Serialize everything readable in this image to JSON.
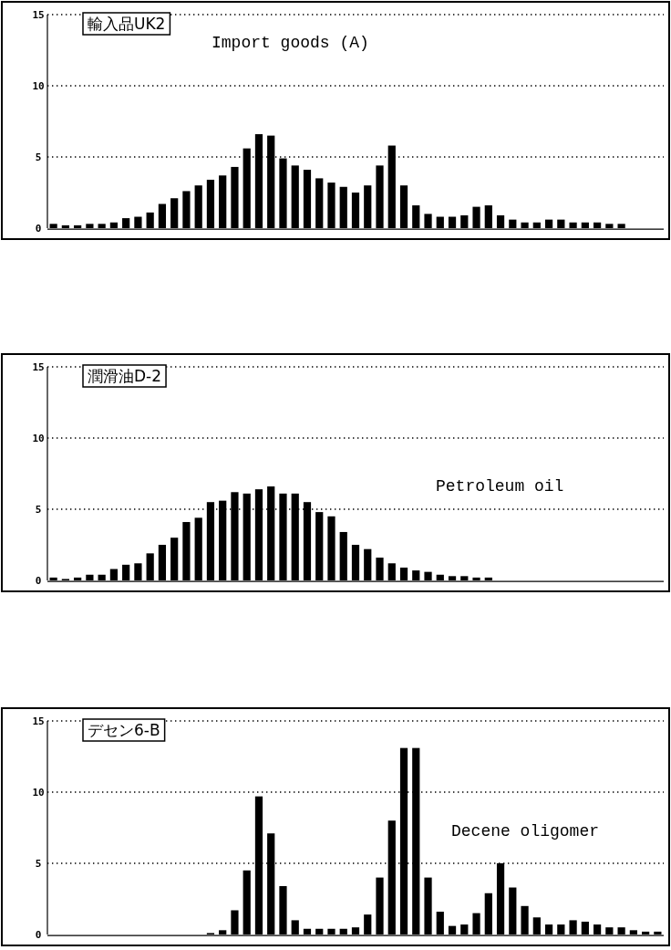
{
  "chart_data": [
    {
      "type": "bar",
      "title": "輸入品UK2",
      "annotations": [
        "Import goods (A)"
      ],
      "categories": [
        null,
        null,
        null,
        null,
        null,
        null,
        null,
        null,
        null,
        null,
        null,
        null,
        null,
        null,
        null,
        null,
        null,
        null,
        null,
        null,
        null,
        null,
        null,
        null,
        null,
        null,
        null,
        null,
        null,
        null,
        null,
        null,
        null,
        null,
        null,
        null,
        null,
        null,
        null,
        null,
        null,
        null,
        null,
        null,
        null,
        null,
        null,
        null,
        null,
        null,
        null
      ],
      "values": [
        0.3,
        0.2,
        0.2,
        0.3,
        0.3,
        0.4,
        0.7,
        0.8,
        1.1,
        1.7,
        2.1,
        2.6,
        3.0,
        3.4,
        3.7,
        4.3,
        5.6,
        6.6,
        6.5,
        4.9,
        4.4,
        4.1,
        3.5,
        3.2,
        2.9,
        2.5,
        3.0,
        4.4,
        5.8,
        3.0,
        1.6,
        1.0,
        0.8,
        0.8,
        0.9,
        1.5,
        1.6,
        0.9,
        0.6,
        0.4,
        0.4,
        0.6,
        0.6,
        0.4,
        0.4,
        0.4,
        0.3,
        0.3,
        null,
        null,
        null
      ],
      "color": "#000000",
      "ylim": [
        0,
        15
      ],
      "yticks": [
        0,
        5,
        10,
        15
      ],
      "grid": "y"
    },
    {
      "type": "bar",
      "title": "潤滑油D-2",
      "annotations": [
        "Petroleum oil"
      ],
      "categories": [
        null,
        null,
        null,
        null,
        null,
        null,
        null,
        null,
        null,
        null,
        null,
        null,
        null,
        null,
        null,
        null,
        null,
        null,
        null,
        null,
        null,
        null,
        null,
        null,
        null,
        null,
        null,
        null,
        null,
        null,
        null,
        null,
        null,
        null,
        null,
        null,
        null,
        null,
        null,
        null,
        null,
        null,
        null,
        null,
        null,
        null,
        null,
        null,
        null,
        null,
        null
      ],
      "values": [
        0.2,
        0.1,
        0.2,
        0.4,
        0.4,
        0.8,
        1.1,
        1.2,
        1.9,
        2.5,
        3.0,
        4.1,
        4.4,
        5.5,
        5.6,
        6.2,
        6.1,
        6.4,
        6.6,
        6.1,
        6.1,
        5.5,
        4.8,
        4.5,
        3.4,
        2.5,
        2.2,
        1.6,
        1.2,
        0.9,
        0.7,
        0.6,
        0.4,
        0.3,
        0.3,
        0.2,
        0.2,
        0,
        0,
        0,
        0,
        0,
        0,
        0,
        0,
        0,
        0,
        0,
        0,
        0,
        0
      ],
      "color": "#000000",
      "ylim": [
        0,
        15
      ],
      "yticks": [
        0,
        5,
        10,
        15
      ],
      "grid": "y"
    },
    {
      "type": "bar",
      "title": "デセン6-B",
      "annotations": [
        "Decene oligomer"
      ],
      "categories": [
        null,
        null,
        null,
        null,
        null,
        null,
        null,
        null,
        null,
        null,
        null,
        null,
        null,
        null,
        null,
        null,
        null,
        null,
        null,
        null,
        null,
        null,
        null,
        null,
        null,
        null,
        null,
        null,
        null,
        null,
        null,
        null,
        null,
        null,
        null,
        null,
        null,
        null,
        null,
        null,
        null,
        null,
        null,
        null,
        null,
        null,
        null,
        null,
        null,
        null,
        null
      ],
      "values": [
        0,
        0,
        0,
        0,
        0,
        0,
        0,
        0,
        0,
        0,
        0,
        0,
        0,
        0.1,
        0.3,
        1.7,
        4.5,
        9.7,
        7.1,
        3.4,
        1.0,
        0.4,
        0.4,
        0.4,
        0.4,
        0.5,
        1.4,
        4.0,
        8.0,
        13.1,
        13.1,
        4.0,
        1.6,
        0.6,
        0.7,
        1.5,
        2.9,
        5.0,
        3.3,
        2.0,
        1.2,
        0.7,
        0.7,
        1.0,
        0.9,
        0.7,
        0.5,
        0.5,
        0.3,
        0.2,
        0.2
      ],
      "color": "#000000",
      "ylim": [
        0,
        15
      ],
      "yticks": [
        0,
        5,
        10,
        15
      ],
      "grid": "y"
    }
  ]
}
